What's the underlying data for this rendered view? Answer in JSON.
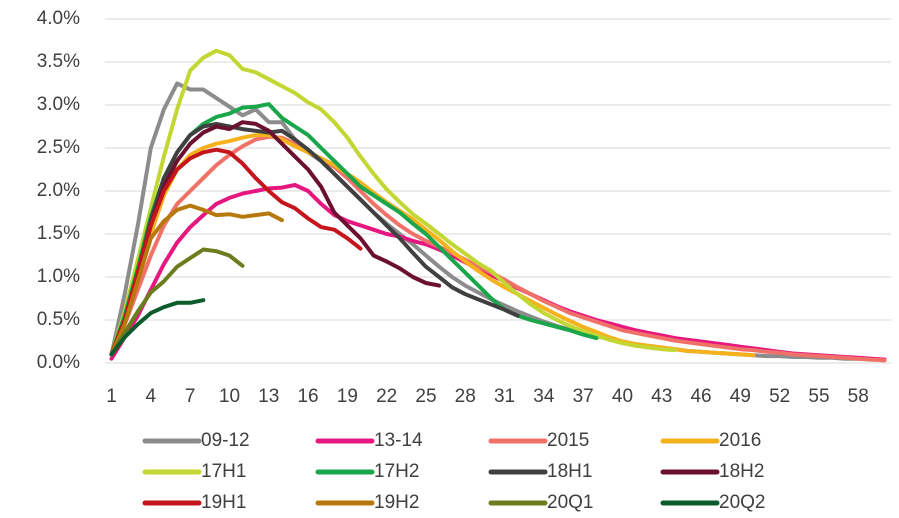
{
  "chart_data": {
    "type": "line",
    "x": [
      1,
      2,
      3,
      4,
      5,
      6,
      7,
      8,
      9,
      10,
      11,
      12,
      13,
      14,
      15,
      16,
      17,
      18,
      19,
      20,
      21,
      22,
      23,
      24,
      25,
      26,
      27,
      28,
      29,
      30,
      31,
      32,
      33,
      34,
      35,
      36,
      37,
      38,
      39,
      40,
      41,
      42,
      43,
      44,
      45,
      46,
      47,
      48,
      49,
      50,
      51,
      52,
      53,
      54,
      55,
      56,
      57,
      58,
      59,
      60
    ],
    "xlim": [
      0.5,
      60.5
    ],
    "xticks": [
      1,
      4,
      7,
      10,
      13,
      16,
      19,
      22,
      25,
      28,
      31,
      34,
      37,
      40,
      43,
      46,
      49,
      52,
      55,
      58
    ],
    "ylim": [
      0,
      4
    ],
    "yticks": [
      {
        "value": 0,
        "label": "0.0%"
      },
      {
        "value": 0.5,
        "label": "0.5%"
      },
      {
        "value": 1,
        "label": "1.0%"
      },
      {
        "value": 1.5,
        "label": "1.5%"
      },
      {
        "value": 2,
        "label": "2.0%"
      },
      {
        "value": 2.5,
        "label": "2.5%"
      },
      {
        "value": 3,
        "label": "3.0%"
      },
      {
        "value": 3.5,
        "label": "3.5%"
      },
      {
        "value": 4,
        "label": "4.0%"
      }
    ],
    "grid": true,
    "legend": "bottom",
    "series": [
      {
        "name": "09-12",
        "color": "#8c8c8c",
        "values": [
          0.1,
          0.8,
          1.6,
          2.5,
          2.95,
          3.25,
          3.18,
          3.18,
          3.08,
          2.98,
          2.88,
          2.95,
          2.8,
          2.8,
          2.6,
          2.45,
          2.35,
          2.2,
          2.05,
          1.9,
          1.75,
          1.62,
          1.5,
          1.38,
          1.25,
          1.12,
          1.0,
          0.9,
          0.82,
          0.74,
          0.67,
          0.6,
          0.54,
          0.48,
          0.43,
          0.39,
          0.35,
          0.31,
          0.28,
          0.25,
          0.22,
          0.2,
          0.18,
          0.16,
          0.14,
          0.13,
          0.12,
          0.11,
          0.1,
          0.09,
          0.08,
          0.08,
          0.07,
          0.07,
          0.06,
          0.06,
          0.05,
          0.05,
          0.04,
          0.04
        ]
      },
      {
        "name": "13-14",
        "color": "#e6177f",
        "values": [
          0.05,
          0.3,
          0.55,
          0.85,
          1.15,
          1.4,
          1.58,
          1.72,
          1.85,
          1.92,
          1.97,
          2.0,
          2.03,
          2.04,
          2.07,
          2.0,
          1.85,
          1.72,
          1.65,
          1.6,
          1.55,
          1.5,
          1.47,
          1.42,
          1.38,
          1.32,
          1.25,
          1.17,
          1.1,
          1.02,
          0.95,
          0.87,
          0.8,
          0.73,
          0.66,
          0.6,
          0.55,
          0.5,
          0.46,
          0.42,
          0.38,
          0.35,
          0.32,
          0.29,
          0.27,
          0.25,
          0.23,
          0.21,
          0.19,
          0.17,
          0.15,
          0.13,
          0.11,
          0.1,
          0.09,
          0.08,
          0.07,
          0.06,
          0.05,
          0.04
        ]
      },
      {
        "name": "2015",
        "color": "#f07167",
        "values": [
          0.1,
          0.45,
          0.85,
          1.25,
          1.6,
          1.85,
          2.0,
          2.15,
          2.3,
          2.42,
          2.52,
          2.6,
          2.63,
          2.62,
          2.55,
          2.45,
          2.38,
          2.28,
          2.15,
          2.0,
          1.85,
          1.72,
          1.6,
          1.5,
          1.42,
          1.35,
          1.28,
          1.2,
          1.12,
          1.05,
          0.97,
          0.88,
          0.8,
          0.72,
          0.65,
          0.58,
          0.53,
          0.48,
          0.43,
          0.38,
          0.35,
          0.32,
          0.29,
          0.26,
          0.24,
          0.22,
          0.2,
          0.18,
          0.16,
          0.15,
          0.13,
          0.12,
          0.1,
          0.09,
          0.08,
          0.07,
          0.06,
          0.05,
          0.04,
          0.03
        ]
      },
      {
        "name": "2016",
        "color": "#f6b21c",
        "values": [
          0.1,
          0.5,
          1.0,
          1.5,
          1.95,
          2.25,
          2.42,
          2.5,
          2.55,
          2.58,
          2.62,
          2.65,
          2.65,
          2.6,
          2.52,
          2.45,
          2.38,
          2.3,
          2.2,
          2.1,
          1.98,
          1.87,
          1.77,
          1.67,
          1.55,
          1.43,
          1.3,
          1.18,
          1.07,
          0.97,
          0.88,
          0.8,
          0.72,
          0.64,
          0.56,
          0.49,
          0.42,
          0.36,
          0.3,
          0.25,
          0.22,
          0.2,
          0.18,
          0.16,
          0.14,
          0.13,
          0.12,
          0.11,
          0.1,
          0.09,
          null,
          null,
          null,
          null,
          null,
          null,
          null,
          null,
          null,
          null
        ]
      },
      {
        "name": "17H1",
        "color": "#c2d733",
        "values": [
          0.1,
          0.6,
          1.2,
          1.8,
          2.4,
          2.95,
          3.4,
          3.55,
          3.63,
          3.58,
          3.42,
          3.38,
          3.3,
          3.22,
          3.14,
          3.03,
          2.95,
          2.8,
          2.62,
          2.4,
          2.2,
          2.02,
          1.87,
          1.73,
          1.62,
          1.5,
          1.38,
          1.27,
          1.16,
          1.07,
          0.93,
          0.8,
          0.68,
          0.58,
          0.5,
          0.43,
          0.37,
          0.32,
          0.27,
          0.23,
          0.2,
          0.18,
          0.16,
          0.15,
          null,
          null,
          null,
          null,
          null,
          null,
          null,
          null,
          null,
          null,
          null,
          null,
          null,
          null,
          null,
          null
        ]
      },
      {
        "name": "17H2",
        "color": "#1aa64a",
        "values": [
          0.1,
          0.55,
          1.1,
          1.7,
          2.15,
          2.45,
          2.65,
          2.78,
          2.86,
          2.9,
          2.97,
          2.98,
          3.01,
          2.85,
          2.75,
          2.65,
          2.5,
          2.35,
          2.2,
          2.05,
          1.95,
          1.85,
          1.75,
          1.62,
          1.5,
          1.35,
          1.2,
          1.05,
          0.9,
          0.75,
          0.62,
          0.55,
          0.5,
          0.46,
          0.42,
          0.38,
          0.33,
          0.29,
          null,
          null,
          null,
          null,
          null,
          null,
          null,
          null,
          null,
          null,
          null,
          null,
          null,
          null,
          null,
          null,
          null,
          null,
          null,
          null,
          null,
          null
        ]
      },
      {
        "name": "18H1",
        "color": "#404040",
        "values": [
          0.1,
          0.5,
          1.05,
          1.65,
          2.15,
          2.45,
          2.65,
          2.75,
          2.78,
          2.75,
          2.72,
          2.7,
          2.68,
          2.7,
          2.6,
          2.48,
          2.35,
          2.2,
          2.05,
          1.9,
          1.75,
          1.6,
          1.45,
          1.28,
          1.12,
          1.0,
          0.88,
          0.8,
          0.74,
          0.68,
          0.62,
          0.55,
          null,
          null,
          null,
          null,
          null,
          null,
          null,
          null,
          null,
          null,
          null,
          null,
          null,
          null,
          null,
          null,
          null,
          null,
          null,
          null,
          null,
          null,
          null,
          null,
          null,
          null,
          null,
          null
        ]
      },
      {
        "name": "18H2",
        "color": "#6b1030",
        "values": [
          0.1,
          0.5,
          1.0,
          1.6,
          2.05,
          2.35,
          2.55,
          2.68,
          2.75,
          2.72,
          2.8,
          2.78,
          2.7,
          2.55,
          2.4,
          2.25,
          2.05,
          1.75,
          1.6,
          1.45,
          1.25,
          1.18,
          1.1,
          1.0,
          0.93,
          0.9,
          null,
          null,
          null,
          null,
          null,
          null,
          null,
          null,
          null,
          null,
          null,
          null,
          null,
          null,
          null,
          null,
          null,
          null,
          null,
          null,
          null,
          null,
          null,
          null,
          null,
          null,
          null,
          null,
          null,
          null,
          null,
          null,
          null,
          null
        ]
      },
      {
        "name": "19H1",
        "color": "#c4161c",
        "values": [
          0.1,
          0.5,
          1.05,
          1.6,
          2.0,
          2.25,
          2.38,
          2.45,
          2.48,
          2.45,
          2.32,
          2.15,
          2.0,
          1.87,
          1.8,
          1.68,
          1.58,
          1.55,
          1.45,
          1.33,
          null,
          null,
          null,
          null,
          null,
          null,
          null,
          null,
          null,
          null,
          null,
          null,
          null,
          null,
          null,
          null,
          null,
          null,
          null,
          null,
          null,
          null,
          null,
          null,
          null,
          null,
          null,
          null,
          null,
          null,
          null,
          null,
          null,
          null,
          null,
          null,
          null,
          null,
          null,
          null
        ]
      },
      {
        "name": "19H2",
        "color": "#b7790c",
        "values": [
          0.1,
          0.45,
          0.95,
          1.45,
          1.65,
          1.78,
          1.83,
          1.78,
          1.72,
          1.73,
          1.7,
          1.72,
          1.74,
          1.66,
          null,
          null,
          null,
          null,
          null,
          null,
          null,
          null,
          null,
          null,
          null,
          null,
          null,
          null,
          null,
          null,
          null,
          null,
          null,
          null,
          null,
          null,
          null,
          null,
          null,
          null,
          null,
          null,
          null,
          null,
          null,
          null,
          null,
          null,
          null,
          null,
          null,
          null,
          null,
          null,
          null,
          null,
          null,
          null,
          null,
          null
        ]
      },
      {
        "name": "20Q1",
        "color": "#6b7d1e",
        "values": [
          0.1,
          0.35,
          0.6,
          0.82,
          0.95,
          1.12,
          1.22,
          1.32,
          1.3,
          1.25,
          1.13,
          null,
          null,
          null,
          null,
          null,
          null,
          null,
          null,
          null,
          null,
          null,
          null,
          null,
          null,
          null,
          null,
          null,
          null,
          null,
          null,
          null,
          null,
          null,
          null,
          null,
          null,
          null,
          null,
          null,
          null,
          null,
          null,
          null,
          null,
          null,
          null,
          null,
          null,
          null,
          null,
          null,
          null,
          null,
          null,
          null,
          null,
          null,
          null,
          null
        ]
      },
      {
        "name": "20Q2",
        "color": "#0b5b2c",
        "values": [
          0.1,
          0.3,
          0.45,
          0.58,
          0.65,
          0.7,
          0.7,
          0.73,
          null,
          null,
          null,
          null,
          null,
          null,
          null,
          null,
          null,
          null,
          null,
          null,
          null,
          null,
          null,
          null,
          null,
          null,
          null,
          null,
          null,
          null,
          null,
          null,
          null,
          null,
          null,
          null,
          null,
          null,
          null,
          null,
          null,
          null,
          null,
          null,
          null,
          null,
          null,
          null,
          null,
          null,
          null,
          null,
          null,
          null,
          null,
          null,
          null,
          null,
          null,
          null
        ]
      }
    ]
  }
}
